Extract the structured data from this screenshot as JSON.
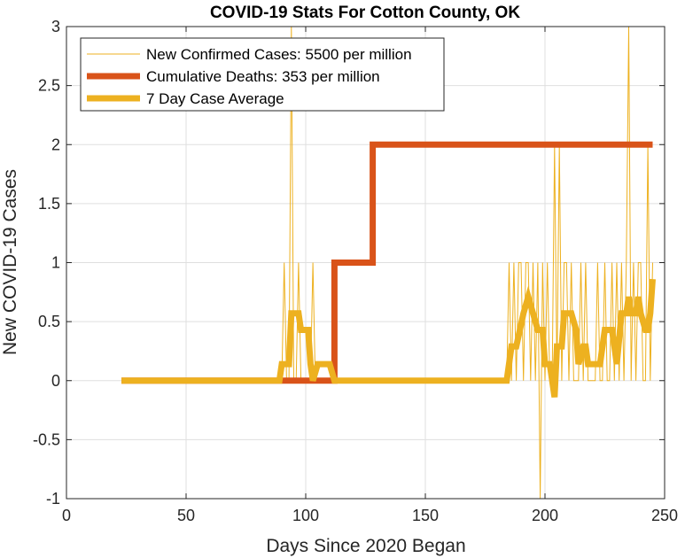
{
  "chart_data": {
    "type": "line",
    "title": "COVID-19 Stats For Cotton County, OK",
    "xlabel": "Days Since 2020 Began",
    "ylabel": "New COVID-19 Cases",
    "xlim": [
      0,
      250
    ],
    "ylim": [
      -1,
      3
    ],
    "xticks": [
      0,
      50,
      100,
      150,
      200,
      250
    ],
    "yticks": [
      -1,
      -0.5,
      0,
      0.5,
      1,
      1.5,
      2,
      2.5,
      3
    ],
    "grid": true,
    "legend_position": "top-left",
    "series": [
      {
        "name": "New Confirmed Cases: 5500 per million",
        "color": "#EDB120",
        "points": [
          [
            23,
            0
          ],
          [
            90,
            0
          ],
          [
            91,
            1
          ],
          [
            92,
            0
          ],
          [
            93,
            0
          ],
          [
            94,
            3
          ],
          [
            95,
            0
          ],
          [
            96,
            0
          ],
          [
            97,
            1
          ],
          [
            98,
            0
          ],
          [
            99,
            0
          ],
          [
            100,
            0
          ],
          [
            101,
            0
          ],
          [
            102,
            0
          ],
          [
            103,
            1
          ],
          [
            104,
            0
          ],
          [
            105,
            0
          ],
          [
            106,
            0
          ],
          [
            107,
            0
          ],
          [
            108,
            0
          ],
          [
            109,
            0
          ],
          [
            110,
            0
          ],
          [
            111,
            0
          ],
          [
            112,
            1
          ],
          [
            113,
            0
          ],
          [
            184,
            0
          ],
          [
            185,
            1
          ],
          [
            186,
            0
          ],
          [
            187,
            1
          ],
          [
            188,
            0
          ],
          [
            189,
            1
          ],
          [
            190,
            1
          ],
          [
            191,
            0
          ],
          [
            192,
            1
          ],
          [
            193,
            1
          ],
          [
            194,
            0
          ],
          [
            195,
            1
          ],
          [
            196,
            0
          ],
          [
            197,
            1
          ],
          [
            198,
            -1
          ],
          [
            199,
            1
          ],
          [
            200,
            0
          ],
          [
            201,
            1
          ],
          [
            202,
            0
          ],
          [
            203,
            0
          ],
          [
            204,
            2
          ],
          [
            205,
            0
          ],
          [
            206,
            2
          ],
          [
            207,
            0
          ],
          [
            208,
            1
          ],
          [
            209,
            1
          ],
          [
            210,
            0
          ],
          [
            211,
            1
          ],
          [
            212,
            0
          ],
          [
            213,
            0
          ],
          [
            214,
            0
          ],
          [
            215,
            1
          ],
          [
            216,
            0
          ],
          [
            217,
            1
          ],
          [
            218,
            0
          ],
          [
            219,
            0
          ],
          [
            220,
            0
          ],
          [
            221,
            0
          ],
          [
            222,
            1
          ],
          [
            223,
            0
          ],
          [
            224,
            0
          ],
          [
            225,
            1
          ],
          [
            226,
            0
          ],
          [
            227,
            0
          ],
          [
            228,
            1
          ],
          [
            229,
            0
          ],
          [
            230,
            1
          ],
          [
            231,
            0
          ],
          [
            232,
            1
          ],
          [
            233,
            0
          ],
          [
            234,
            1
          ],
          [
            235,
            3
          ],
          [
            236,
            0
          ],
          [
            237,
            1
          ],
          [
            238,
            0
          ],
          [
            239,
            1
          ],
          [
            240,
            1
          ],
          [
            241,
            0
          ],
          [
            242,
            0
          ],
          [
            243,
            2
          ],
          [
            244,
            0
          ],
          [
            245,
            1
          ]
        ]
      },
      {
        "name": "Cumulative Deaths: 353 per million",
        "color": "#D95319",
        "points": [
          [
            23,
            0
          ],
          [
            112,
            0
          ],
          [
            112,
            1
          ],
          [
            128,
            1
          ],
          [
            128,
            2
          ],
          [
            245,
            2
          ]
        ]
      },
      {
        "name": "7 Day Case Average",
        "color": "#EDB120",
        "points": [
          [
            23,
            0
          ],
          [
            89,
            0
          ],
          [
            90,
            0.14
          ],
          [
            93,
            0.14
          ],
          [
            94,
            0.57
          ],
          [
            97,
            0.57
          ],
          [
            98,
            0.43
          ],
          [
            101,
            0.43
          ],
          [
            102,
            0.14
          ],
          [
            103,
            0
          ],
          [
            105,
            0.14
          ],
          [
            110,
            0.14
          ],
          [
            112,
            0
          ],
          [
            184,
            0
          ],
          [
            186,
            0.29
          ],
          [
            188,
            0.29
          ],
          [
            191,
            0.57
          ],
          [
            193,
            0.71
          ],
          [
            195,
            0.57
          ],
          [
            197,
            0.43
          ],
          [
            199,
            0.43
          ],
          [
            200,
            0.14
          ],
          [
            202,
            0.14
          ],
          [
            204,
            -0.14
          ],
          [
            205,
            0.29
          ],
          [
            207,
            0.29
          ],
          [
            208,
            0.57
          ],
          [
            211,
            0.57
          ],
          [
            213,
            0.43
          ],
          [
            214,
            0.14
          ],
          [
            216,
            0.29
          ],
          [
            217,
            0.29
          ],
          [
            218,
            0.14
          ],
          [
            223,
            0.14
          ],
          [
            225,
            0.43
          ],
          [
            228,
            0.43
          ],
          [
            229,
            0.29
          ],
          [
            230,
            0.14
          ],
          [
            232,
            0.57
          ],
          [
            234,
            0.57
          ],
          [
            235,
            0.71
          ],
          [
            236,
            0.57
          ],
          [
            238,
            0.57
          ],
          [
            239,
            0.71
          ],
          [
            240,
            0.57
          ],
          [
            242,
            0.43
          ],
          [
            243,
            0.43
          ],
          [
            244,
            0.57
          ],
          [
            245,
            0.86
          ]
        ]
      }
    ]
  }
}
